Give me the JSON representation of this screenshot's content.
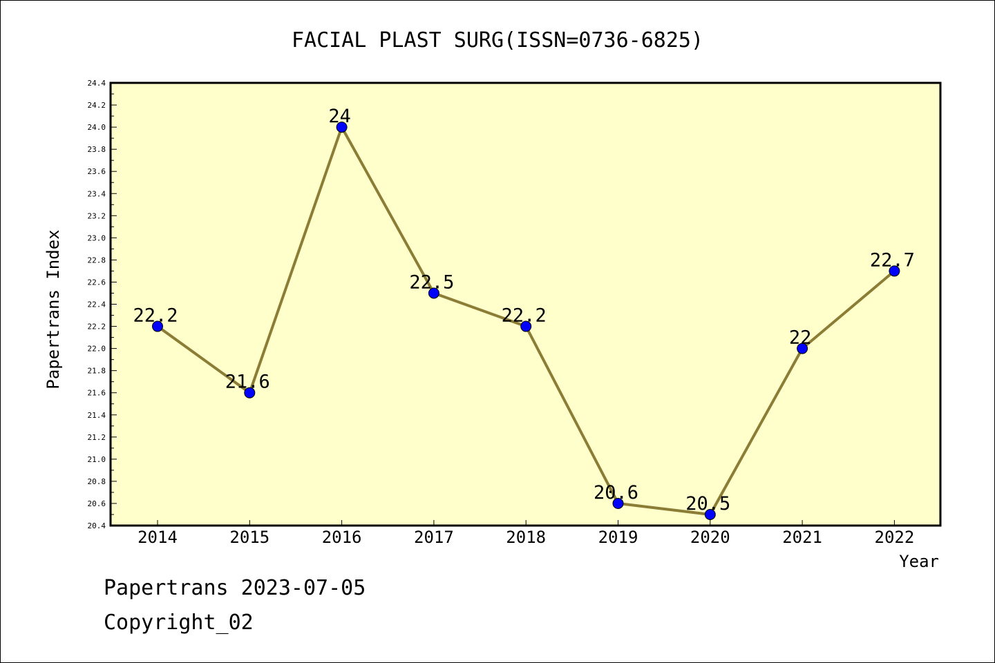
{
  "chart_data": {
    "type": "line",
    "title": "FACIAL PLAST SURG(ISSN=0736-6825)",
    "xlabel": "Year",
    "ylabel": "Papertrans Index",
    "categories": [
      "2014",
      "2015",
      "2016",
      "2017",
      "2018",
      "2019",
      "2020",
      "2021",
      "2022"
    ],
    "series": [
      {
        "values": [
          22.2,
          21.6,
          24,
          22.5,
          22.2,
          20.6,
          20.5,
          22,
          22.7
        ]
      }
    ],
    "data_labels": [
      "22.2",
      "21.6",
      "24",
      "22.5",
      "22.2",
      "20.6",
      "20.5",
      "22",
      "22.7"
    ],
    "ylim": [
      20.4,
      24.4
    ],
    "yticks": [
      "20.4",
      "20.6",
      "20.8",
      "21.0",
      "21.2",
      "21.4",
      "21.6",
      "21.8",
      "22.0",
      "22.2",
      "22.4",
      "22.6",
      "22.8",
      "23.0",
      "23.2",
      "23.4",
      "23.6",
      "23.8",
      "24.0",
      "24.2",
      "24.4"
    ],
    "grid": false,
    "colors": {
      "plot_background": "#ffffcc",
      "line": "#8b7d35",
      "marker": "#0000ff"
    }
  },
  "footer": {
    "line1": "Papertrans 2023-07-05",
    "line2": "Copyright_02"
  }
}
